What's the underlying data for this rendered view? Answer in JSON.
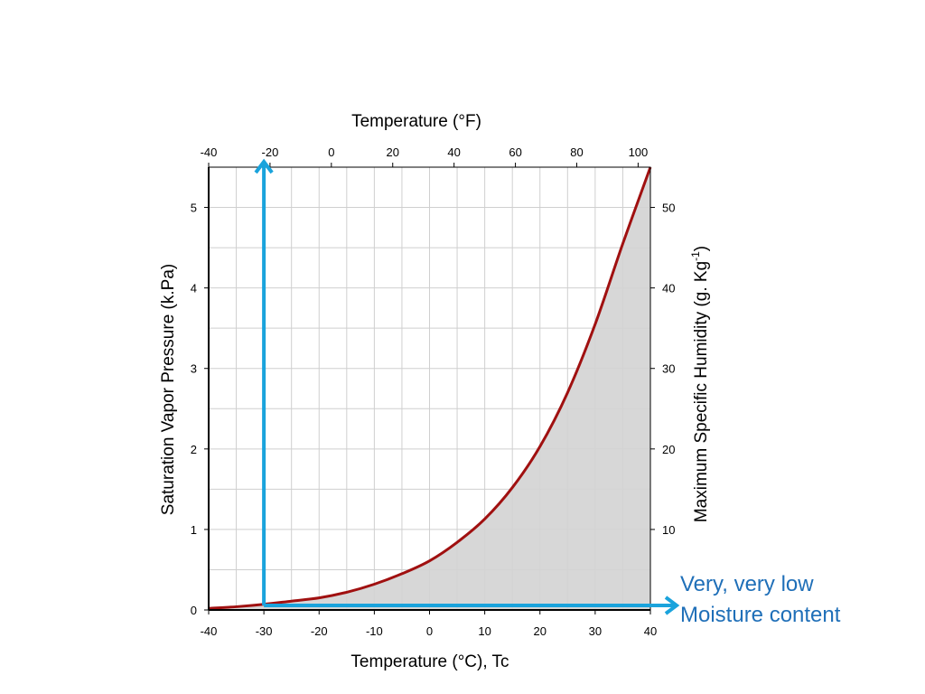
{
  "chart_data": {
    "type": "area",
    "x_bottom": {
      "label": "Temperature (°C), Tc",
      "range": [
        -40,
        40
      ],
      "ticks": [
        -40,
        -30,
        -20,
        -10,
        0,
        10,
        20,
        30,
        40
      ]
    },
    "x_top": {
      "label": "Temperature (°F)",
      "ticks": [
        -40,
        -20,
        0,
        20,
        40,
        60,
        80,
        100
      ]
    },
    "y_left": {
      "label": "Saturation Vapor Pressure (k.Pa)",
      "range": [
        0,
        5.5
      ],
      "ticks": [
        0,
        1,
        2,
        3,
        4,
        5
      ]
    },
    "y_right": {
      "label_main": "Maximum Specific Humidity (g. Kg",
      "label_sup": "-1",
      "label_end": ")",
      "ticks": [
        10,
        20,
        30,
        40,
        50
      ]
    },
    "grid": true,
    "series": [
      {
        "x": [
          -40,
          -35,
          -30,
          -25,
          -20,
          -15,
          -10,
          -5,
          0,
          5,
          10,
          15,
          20,
          25,
          30,
          35,
          40
        ],
        "y": [
          0.02,
          0.04,
          0.07,
          0.11,
          0.15,
          0.22,
          0.32,
          0.45,
          0.61,
          0.84,
          1.13,
          1.52,
          2.03,
          2.7,
          3.55,
          4.55,
          5.5
        ],
        "color": "#a01010",
        "fill": "#d3d3d3"
      }
    ],
    "annotation": {
      "x_marker": -30,
      "line1": "Very, very low",
      "line2": "Moisture content",
      "color": "#1aa3dc",
      "text_color": "#1f6fb8"
    }
  }
}
